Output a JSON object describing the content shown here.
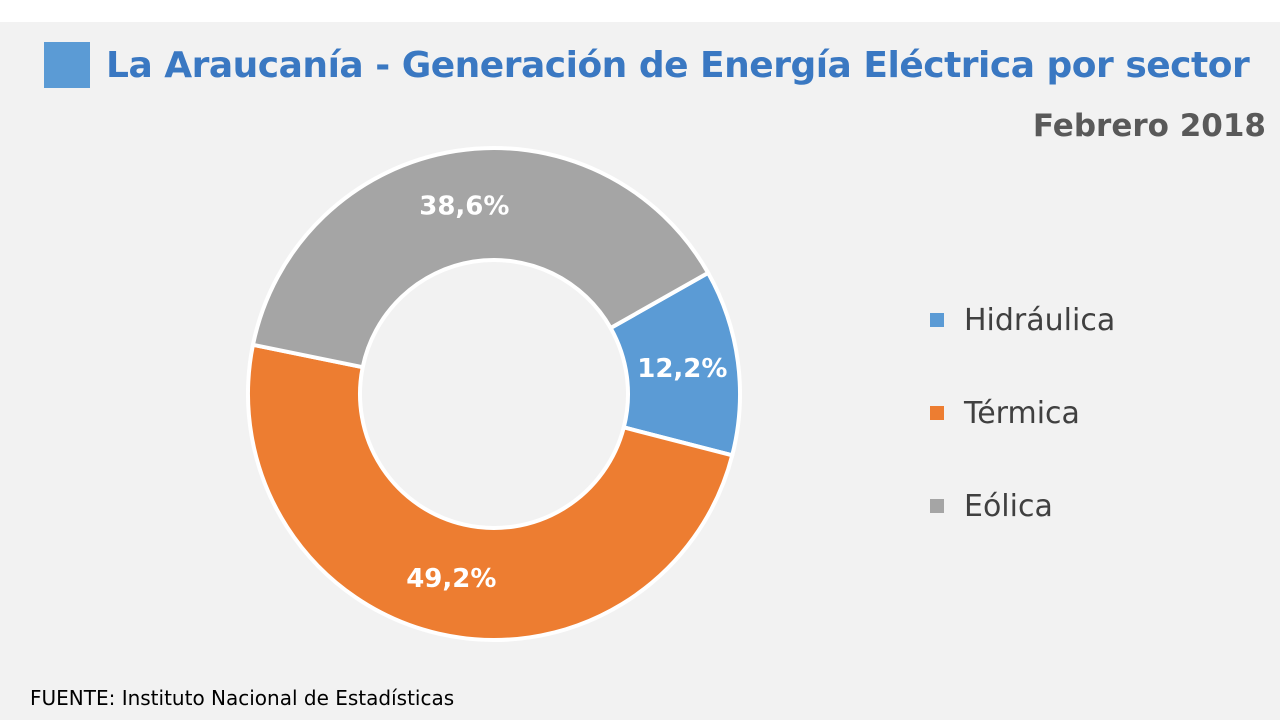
{
  "chart_data": {
    "type": "donut",
    "title": "La Araucanía - Generación de Energía Eléctrica  por sector",
    "subtitle": "Febrero 2018",
    "categories": [
      "Hidráulica",
      "Térmica",
      "Eólica"
    ],
    "values": [
      12.2,
      49.2,
      38.6
    ],
    "labels": [
      "12,2%",
      "49,2%",
      "38,6%"
    ],
    "colors": [
      "#5b9bd5",
      "#ed7d31",
      "#a5a5a5"
    ],
    "legend_position": "right",
    "source": "FUENTE: Instituto Nacional de Estadísticas"
  },
  "colors": {
    "title": "#3a78c2",
    "title_square": "#5b9bd5",
    "subtitle": "#595959",
    "background": "#f2f2f2"
  },
  "legend": {
    "items": [
      {
        "label": "Hidráulica",
        "color": "#5b9bd5"
      },
      {
        "label": "Térmica",
        "color": "#ed7d31"
      },
      {
        "label": "Eólica",
        "color": "#a5a5a5"
      }
    ]
  }
}
